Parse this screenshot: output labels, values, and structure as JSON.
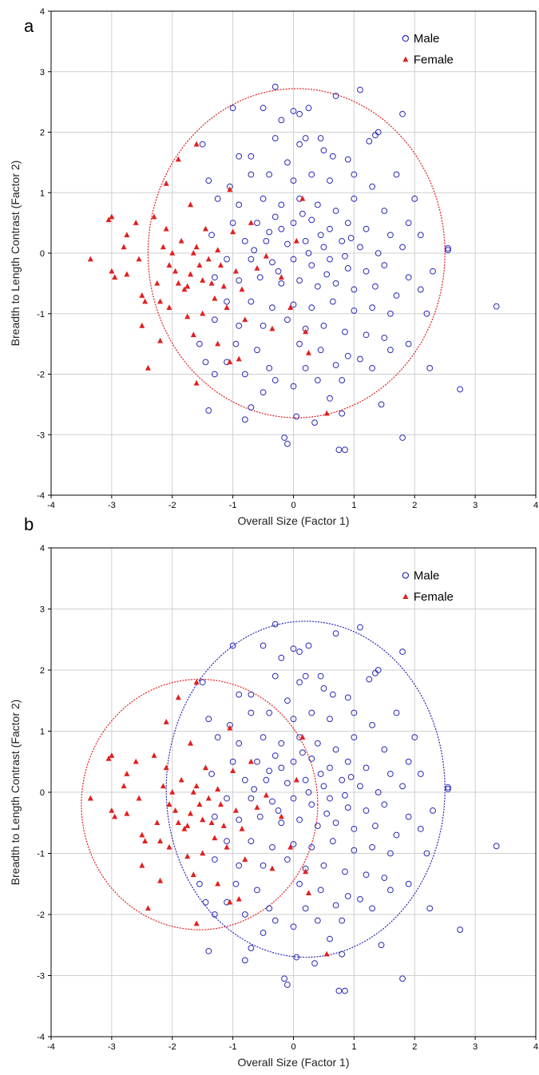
{
  "colors": {
    "male": "#2a2ab8",
    "female": "#e02020",
    "grid": "#cfcfcf",
    "axis": "#000000"
  },
  "chart_data": [
    {
      "type": "scatter",
      "panel_label": "a",
      "xlabel": "Overall Size (Factor 1)",
      "ylabel": "Breadth to Length Contrast (Factor 2)",
      "xlim": [
        -4,
        4
      ],
      "ylim": [
        -4,
        4
      ],
      "xticks": [
        -4,
        -3,
        -2,
        -1,
        0,
        1,
        2,
        3,
        4
      ],
      "yticks": [
        -4,
        -3,
        -2,
        -1,
        0,
        1,
        2,
        3,
        4
      ],
      "grid": true,
      "legend": "top-right",
      "legend_entries": [
        "Male",
        "Female"
      ],
      "ellipses": [
        {
          "series": "pooled",
          "cx": 0.05,
          "cy": 0.0,
          "rx": 2.45,
          "ry": 2.72,
          "color": "#e02020"
        }
      ]
    },
    {
      "type": "scatter",
      "panel_label": "b",
      "xlabel": "Overall Size (Factor 1)",
      "ylabel": "Breadth to Length Contrast (Factor 2)",
      "xlim": [
        -4,
        4
      ],
      "ylim": [
        -4,
        4
      ],
      "xticks": [
        -4,
        -3,
        -2,
        -1,
        0,
        1,
        2,
        3,
        4
      ],
      "yticks": [
        -4,
        -3,
        -2,
        -1,
        0,
        1,
        2,
        3,
        4
      ],
      "grid": true,
      "legend": "top-right",
      "legend_entries": [
        "Male",
        "Female"
      ],
      "ellipses": [
        {
          "series": "Male",
          "cx": 0.2,
          "cy": 0.05,
          "rx": 2.3,
          "ry": 2.75,
          "color": "#2a2ab8"
        },
        {
          "series": "Female",
          "cx": -1.55,
          "cy": -0.2,
          "rx": 1.95,
          "ry": 2.05,
          "color": "#e02020"
        }
      ]
    }
  ],
  "series": [
    {
      "name": "Male",
      "marker": "open-circle",
      "points": [
        [
          -0.3,
          2.75
        ],
        [
          1.1,
          2.7
        ],
        [
          0.7,
          2.6
        ],
        [
          -0.5,
          2.4
        ],
        [
          0.25,
          2.4
        ],
        [
          0.0,
          2.35
        ],
        [
          0.1,
          2.3
        ],
        [
          -0.2,
          2.2
        ],
        [
          1.8,
          2.3
        ],
        [
          -1.0,
          2.4
        ],
        [
          0.45,
          1.9
        ],
        [
          1.4,
          2.0
        ],
        [
          1.35,
          1.95
        ],
        [
          0.1,
          1.8
        ],
        [
          0.5,
          1.7
        ],
        [
          0.9,
          1.55
        ],
        [
          1.25,
          1.85
        ],
        [
          -0.7,
          1.6
        ],
        [
          -0.3,
          1.9
        ],
        [
          0.2,
          1.9
        ],
        [
          -1.5,
          1.8
        ],
        [
          -0.9,
          1.6
        ],
        [
          0.65,
          1.6
        ],
        [
          -0.1,
          1.5
        ],
        [
          -1.4,
          1.2
        ],
        [
          -1.05,
          1.1
        ],
        [
          -0.7,
          1.3
        ],
        [
          -0.4,
          1.3
        ],
        [
          0.0,
          1.2
        ],
        [
          0.3,
          1.3
        ],
        [
          0.6,
          1.2
        ],
        [
          1.0,
          1.3
        ],
        [
          1.3,
          1.1
        ],
        [
          1.7,
          1.3
        ],
        [
          2.0,
          0.9
        ],
        [
          -1.25,
          0.9
        ],
        [
          -0.9,
          0.8
        ],
        [
          -0.5,
          0.9
        ],
        [
          -0.2,
          0.8
        ],
        [
          0.1,
          0.9
        ],
        [
          0.4,
          0.8
        ],
        [
          0.7,
          0.7
        ],
        [
          1.0,
          0.9
        ],
        [
          1.5,
          0.7
        ],
        [
          1.9,
          0.5
        ],
        [
          -1.0,
          0.5
        ],
        [
          -0.6,
          0.5
        ],
        [
          -0.3,
          0.6
        ],
        [
          0.0,
          0.5
        ],
        [
          0.3,
          0.55
        ],
        [
          0.6,
          0.4
        ],
        [
          0.9,
          0.5
        ],
        [
          1.2,
          0.4
        ],
        [
          1.6,
          0.3
        ],
        [
          2.1,
          0.3
        ],
        [
          -1.35,
          0.3
        ],
        [
          -0.8,
          0.2
        ],
        [
          -0.45,
          0.2
        ],
        [
          -0.1,
          0.15
        ],
        [
          0.2,
          0.2
        ],
        [
          0.5,
          0.1
        ],
        [
          0.8,
          0.2
        ],
        [
          1.1,
          0.1
        ],
        [
          1.4,
          0.0
        ],
        [
          1.8,
          0.1
        ],
        [
          2.55,
          0.05
        ],
        [
          -1.1,
          -0.1
        ],
        [
          -0.7,
          -0.1
        ],
        [
          -0.35,
          -0.15
        ],
        [
          0.0,
          -0.1
        ],
        [
          0.3,
          -0.2
        ],
        [
          0.6,
          -0.1
        ],
        [
          0.9,
          -0.25
        ],
        [
          1.2,
          -0.3
        ],
        [
          1.5,
          -0.2
        ],
        [
          1.9,
          -0.4
        ],
        [
          2.3,
          -0.3
        ],
        [
          -1.3,
          -0.4
        ],
        [
          -0.9,
          -0.45
        ],
        [
          -0.55,
          -0.4
        ],
        [
          -0.2,
          -0.5
        ],
        [
          0.1,
          -0.45
        ],
        [
          0.4,
          -0.55
        ],
        [
          0.7,
          -0.5
        ],
        [
          1.0,
          -0.6
        ],
        [
          1.35,
          -0.55
        ],
        [
          1.7,
          -0.7
        ],
        [
          2.1,
          -0.6
        ],
        [
          -1.1,
          -0.8
        ],
        [
          -0.7,
          -0.8
        ],
        [
          -0.35,
          -0.9
        ],
        [
          0.0,
          -0.85
        ],
        [
          0.3,
          -0.9
        ],
        [
          0.65,
          -0.8
        ],
        [
          1.0,
          -0.95
        ],
        [
          1.3,
          -0.9
        ],
        [
          1.6,
          -1.0
        ],
        [
          2.2,
          -1.0
        ],
        [
          -1.3,
          -1.1
        ],
        [
          -0.9,
          -1.2
        ],
        [
          -0.5,
          -1.2
        ],
        [
          -0.1,
          -1.1
        ],
        [
          0.2,
          -1.25
        ],
        [
          0.5,
          -1.2
        ],
        [
          0.85,
          -1.3
        ],
        [
          1.2,
          -1.35
        ],
        [
          1.5,
          -1.4
        ],
        [
          1.9,
          -1.5
        ],
        [
          -1.55,
          -1.5
        ],
        [
          -0.95,
          -1.5
        ],
        [
          -0.6,
          -1.6
        ],
        [
          0.1,
          -1.5
        ],
        [
          0.45,
          -1.6
        ],
        [
          0.9,
          -1.7
        ],
        [
          1.1,
          -1.75
        ],
        [
          1.6,
          -1.6
        ],
        [
          -1.45,
          -1.8
        ],
        [
          -1.1,
          -1.8
        ],
        [
          -0.4,
          -1.9
        ],
        [
          0.2,
          -1.9
        ],
        [
          0.7,
          -1.85
        ],
        [
          1.3,
          -1.9
        ],
        [
          2.25,
          -1.9
        ],
        [
          -1.3,
          -2.0
        ],
        [
          -0.8,
          -2.0
        ],
        [
          -0.3,
          -2.1
        ],
        [
          0.4,
          -2.1
        ],
        [
          0.8,
          -2.1
        ],
        [
          -0.5,
          -2.3
        ],
        [
          0.0,
          -2.2
        ],
        [
          0.6,
          -2.4
        ],
        [
          1.45,
          -2.5
        ],
        [
          -1.4,
          -2.6
        ],
        [
          -0.7,
          -2.55
        ],
        [
          0.05,
          -2.7
        ],
        [
          0.35,
          -2.8
        ],
        [
          0.8,
          -2.65
        ],
        [
          -0.8,
          -2.75
        ],
        [
          -0.15,
          -3.05
        ],
        [
          -0.1,
          -3.15
        ],
        [
          0.75,
          -3.25
        ],
        [
          0.85,
          -3.25
        ],
        [
          1.8,
          -3.05
        ],
        [
          2.75,
          -2.25
        ],
        [
          3.35,
          -0.88
        ],
        [
          2.55,
          0.08
        ],
        [
          -0.2,
          0.4
        ],
        [
          0.15,
          0.65
        ],
        [
          0.45,
          0.3
        ],
        [
          -0.65,
          0.05
        ],
        [
          0.85,
          -0.05
        ],
        [
          -0.25,
          -0.3
        ],
        [
          0.55,
          -0.35
        ],
        [
          0.25,
          0.0
        ],
        [
          -0.4,
          0.35
        ],
        [
          0.95,
          0.25
        ]
      ]
    },
    {
      "name": "Female",
      "marker": "filled-triangle",
      "points": [
        [
          -3.35,
          -0.1
        ],
        [
          -3.05,
          0.55
        ],
        [
          -3.0,
          0.6
        ],
        [
          -3.0,
          -0.3
        ],
        [
          -2.95,
          -0.4
        ],
        [
          -2.75,
          -0.35
        ],
        [
          -2.8,
          0.1
        ],
        [
          -2.75,
          0.3
        ],
        [
          -2.6,
          0.5
        ],
        [
          -2.55,
          -0.1
        ],
        [
          -2.5,
          -0.7
        ],
        [
          -2.45,
          -0.8
        ],
        [
          -2.5,
          -1.2
        ],
        [
          -2.4,
          -1.9
        ],
        [
          -2.3,
          0.6
        ],
        [
          -2.25,
          -0.5
        ],
        [
          -2.2,
          -0.8
        ],
        [
          -2.2,
          -1.45
        ],
        [
          -2.15,
          0.1
        ],
        [
          -2.1,
          0.4
        ],
        [
          -2.05,
          -0.2
        ],
        [
          -2.0,
          0.0
        ],
        [
          -1.95,
          -0.3
        ],
        [
          -1.9,
          -0.5
        ],
        [
          -1.85,
          0.2
        ],
        [
          -1.8,
          -0.6
        ],
        [
          -1.75,
          -0.55
        ],
        [
          -1.7,
          -0.35
        ],
        [
          -1.65,
          0.0
        ],
        [
          -1.6,
          0.1
        ],
        [
          -1.55,
          -0.2
        ],
        [
          -1.5,
          -0.45
        ],
        [
          -1.45,
          0.4
        ],
        [
          -1.4,
          -0.1
        ],
        [
          -1.35,
          -0.5
        ],
        [
          -1.3,
          -0.75
        ],
        [
          -1.25,
          0.05
        ],
        [
          -1.2,
          -0.2
        ],
        [
          -1.15,
          -0.55
        ],
        [
          -1.1,
          -0.9
        ],
        [
          -1.05,
          1.05
        ],
        [
          -1.0,
          0.35
        ],
        [
          -0.95,
          -0.3
        ],
        [
          -0.9,
          -1.75
        ],
        [
          -0.85,
          -0.6
        ],
        [
          -0.8,
          -1.1
        ],
        [
          -0.7,
          0.5
        ],
        [
          -0.6,
          -0.25
        ],
        [
          -1.6,
          1.8
        ],
        [
          -1.9,
          1.55
        ],
        [
          -2.1,
          1.15
        ],
        [
          -1.7,
          0.8
        ],
        [
          -1.5,
          -1.0
        ],
        [
          -1.65,
          -1.35
        ],
        [
          -1.6,
          -2.15
        ],
        [
          -2.05,
          -0.9
        ],
        [
          0.15,
          0.9
        ],
        [
          -0.35,
          -1.25
        ],
        [
          0.2,
          -1.3
        ],
        [
          0.55,
          -2.65
        ],
        [
          0.25,
          -1.65
        ],
        [
          -0.05,
          -0.9
        ],
        [
          -0.2,
          -0.4
        ],
        [
          0.05,
          0.2
        ],
        [
          -0.45,
          -0.05
        ],
        [
          -1.25,
          -1.5
        ],
        [
          -1.05,
          -1.8
        ],
        [
          -1.75,
          -1.05
        ]
      ]
    }
  ]
}
